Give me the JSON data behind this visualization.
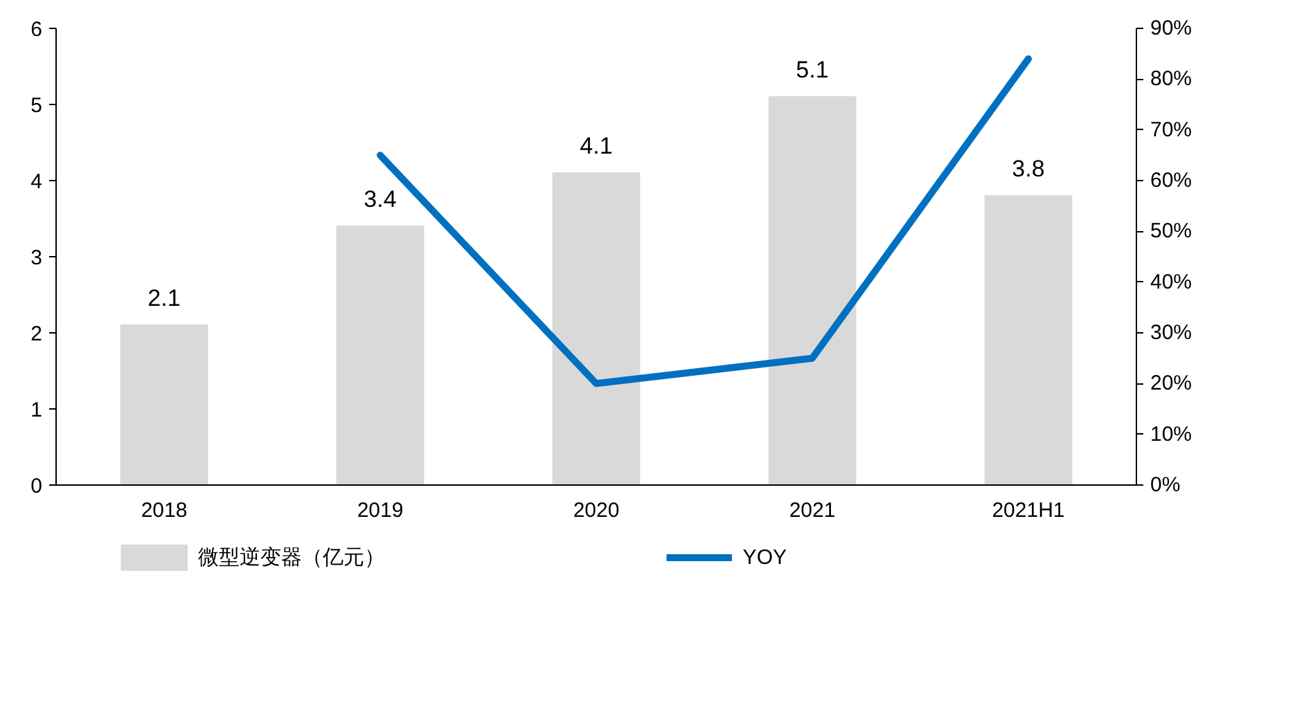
{
  "chart_data": {
    "type": "bar",
    "categories": [
      "2018",
      "2019",
      "2020",
      "2021",
      "2021H1"
    ],
    "series": [
      {
        "name": "微型逆变器（亿元）",
        "color": "#d9d9d9",
        "values": [
          2.1,
          3.4,
          4.1,
          5.1,
          3.8
        ],
        "value_labels": [
          "2.1",
          "3.4",
          "4.1",
          "5.1",
          "3.8"
        ]
      },
      {
        "name": "YOY",
        "type": "line",
        "axis": "y2",
        "color": "#0070c0",
        "values": [
          null,
          65,
          20,
          25,
          84
        ]
      }
    ],
    "ylim": [
      0,
      6
    ],
    "yticks": [
      0,
      1,
      2,
      3,
      4,
      5,
      6
    ],
    "y2lim": [
      0,
      90
    ],
    "y2ticks": [
      {
        "value": 0,
        "label": "0%"
      },
      {
        "value": 10,
        "label": "10%"
      },
      {
        "value": 20,
        "label": "20%"
      },
      {
        "value": 30,
        "label": "30%"
      },
      {
        "value": 40,
        "label": "40%"
      },
      {
        "value": 50,
        "label": "50%"
      },
      {
        "value": 60,
        "label": "60%"
      },
      {
        "value": 70,
        "label": "70%"
      },
      {
        "value": 80,
        "label": "80%"
      },
      {
        "value": 90,
        "label": "90%"
      }
    ],
    "legend": "bottom"
  }
}
